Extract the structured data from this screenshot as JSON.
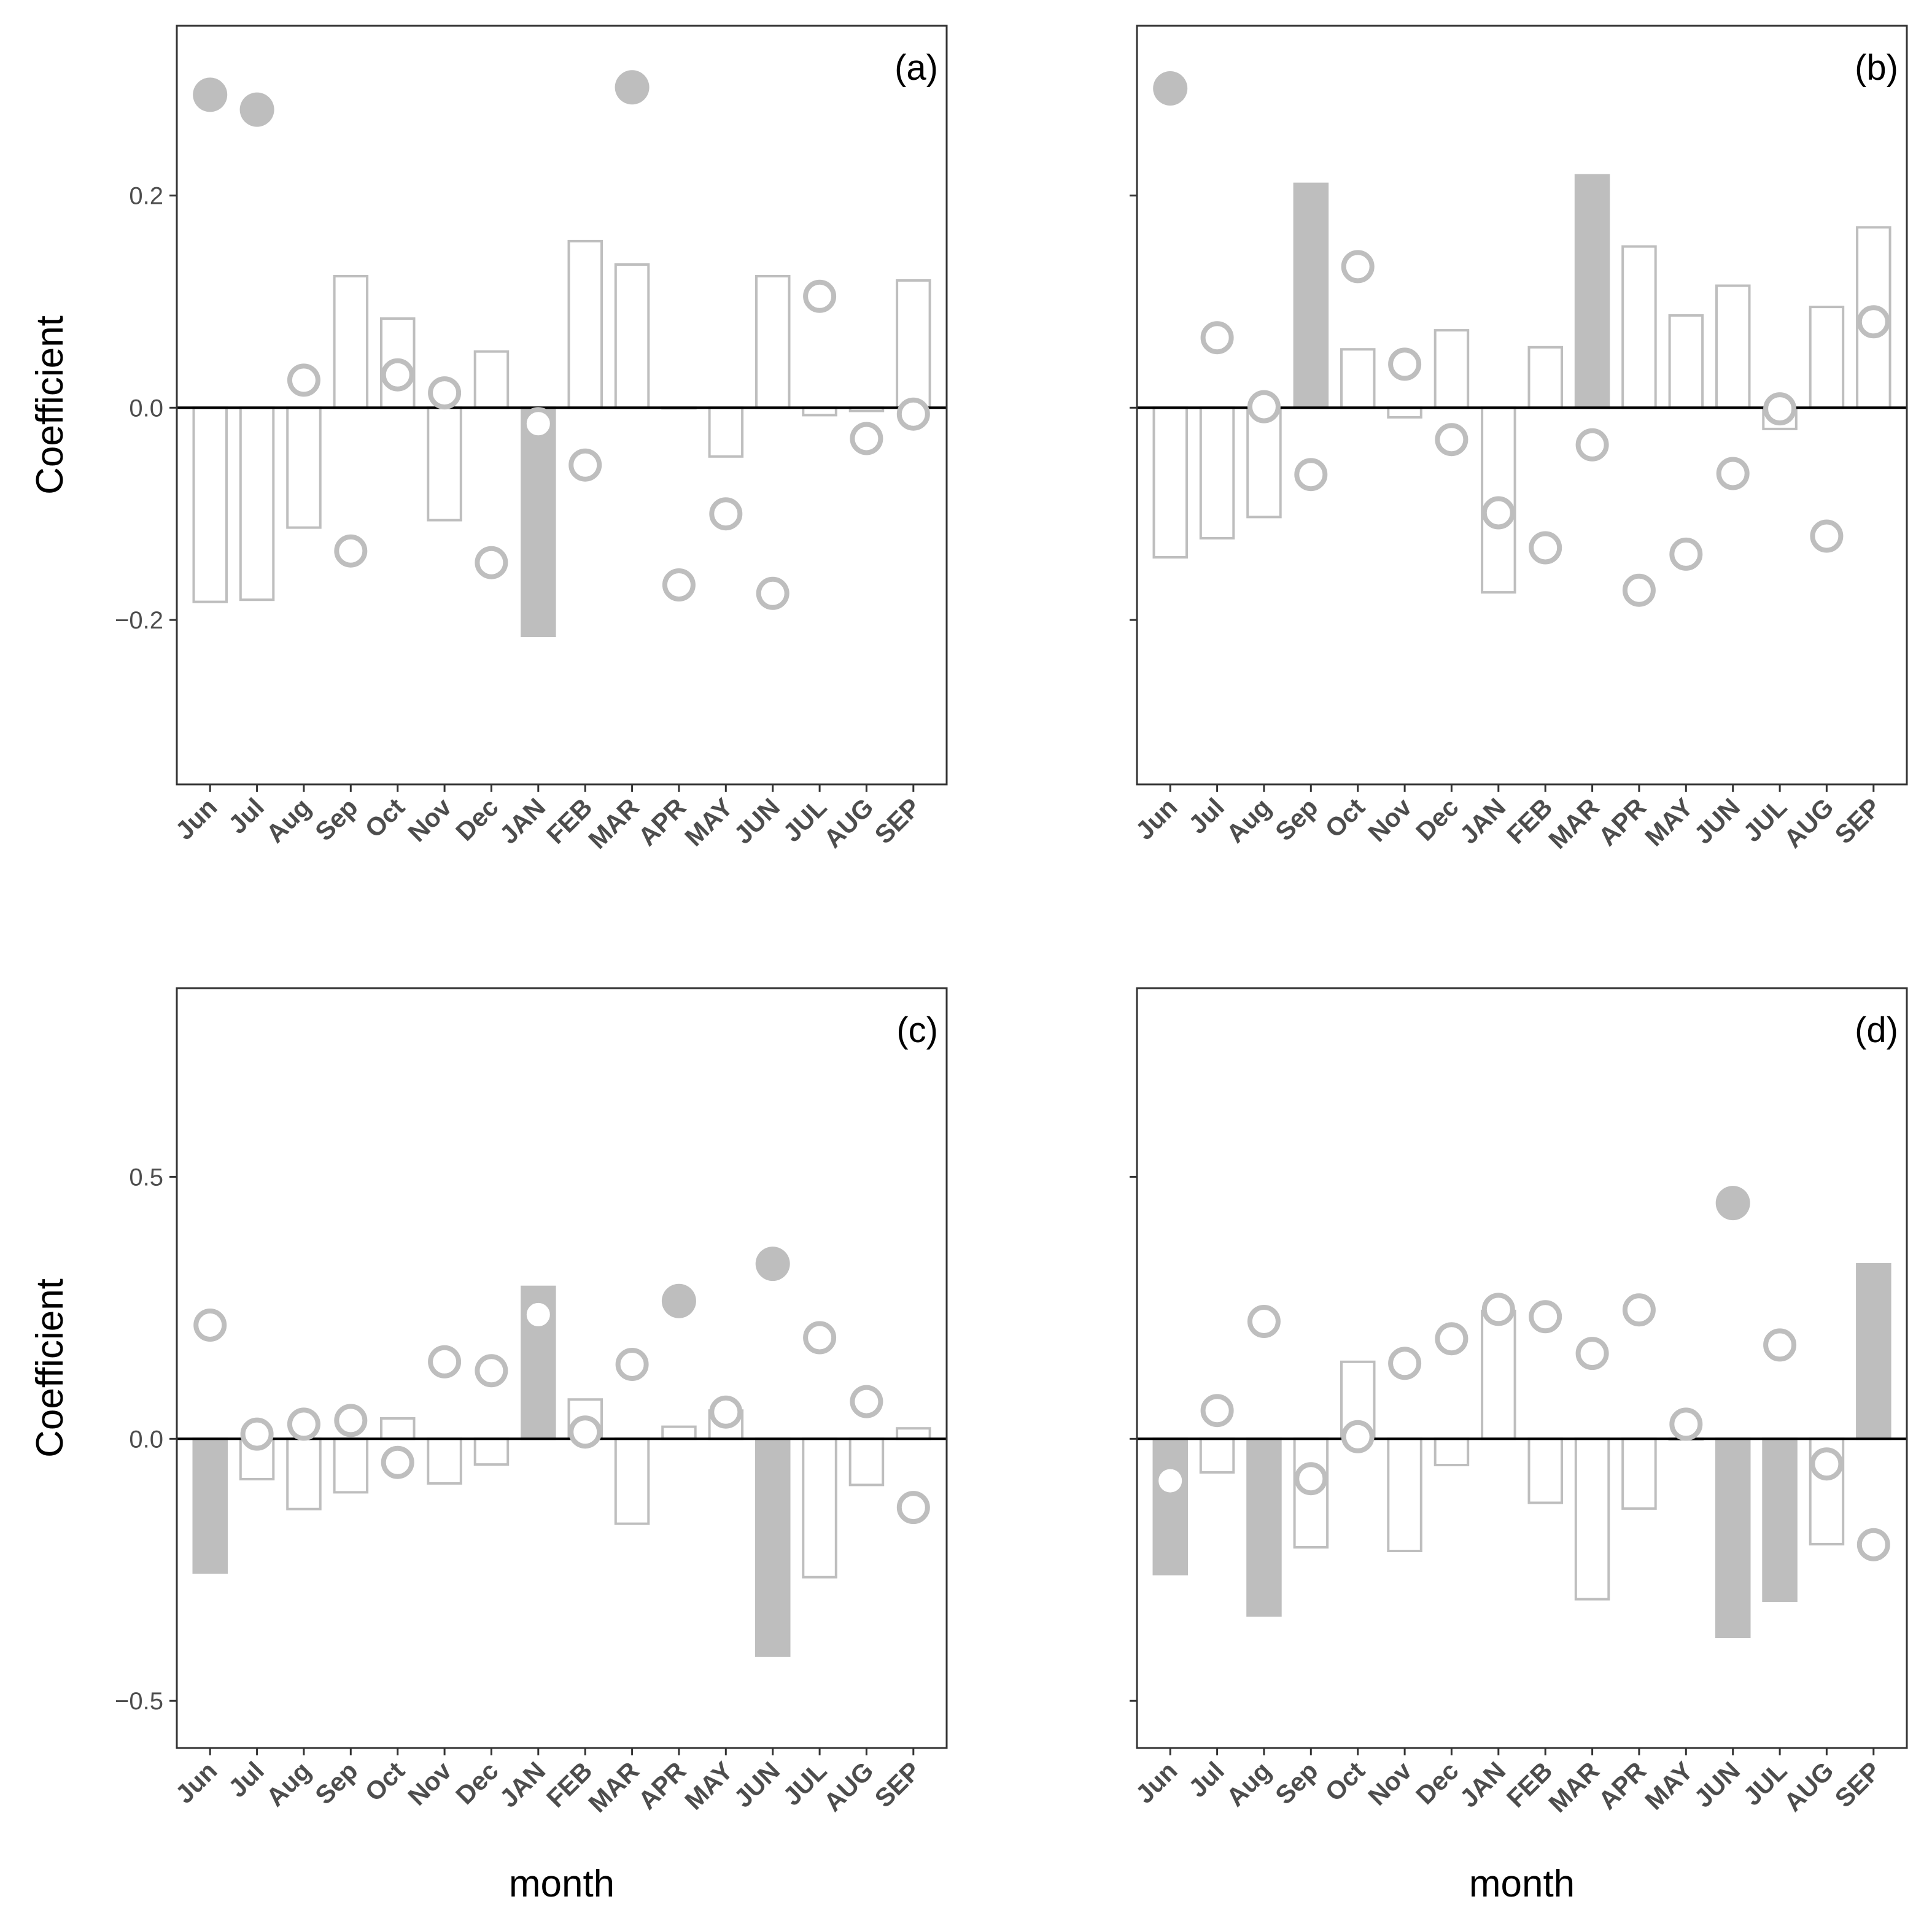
{
  "colors": {
    "mark": "#bebebe",
    "frame": "#333333",
    "zero_line": "#000000",
    "tick_text": "#4d4d4d"
  },
  "axes": {
    "ylabel": "Coefficient",
    "xlabel": "month"
  },
  "chart_data": [
    {
      "type": "bar",
      "panel": "(a)",
      "categories": [
        "Jun",
        "Jul",
        "Aug",
        "Sep",
        "Oct",
        "Nov",
        "Dec",
        "JAN",
        "FEB",
        "MAR",
        "APR",
        "MAY",
        "JUN",
        "JUL",
        "AUG",
        "SEP"
      ],
      "ylim": [
        -0.355,
        0.36
      ],
      "yticks": [
        -0.2,
        0.0,
        0.2
      ],
      "ytick_labels": [
        "−0.2",
        "0.0",
        "0.2"
      ],
      "bars": {
        "values": [
          -0.183,
          -0.181,
          -0.113,
          0.124,
          0.084,
          -0.106,
          0.053,
          -0.215,
          0.157,
          0.135,
          0.0,
          -0.046,
          0.124,
          -0.007,
          -0.003,
          0.12
        ],
        "significant": [
          false,
          false,
          false,
          false,
          false,
          false,
          false,
          true,
          false,
          false,
          false,
          false,
          false,
          false,
          false,
          false
        ]
      },
      "points": {
        "values": [
          0.295,
          0.281,
          0.026,
          -0.135,
          0.031,
          0.014,
          -0.146,
          -0.015,
          -0.054,
          0.302,
          -0.167,
          -0.1,
          -0.175,
          0.105,
          -0.029,
          -0.006
        ],
        "significant": [
          true,
          true,
          false,
          false,
          false,
          false,
          false,
          false,
          false,
          true,
          false,
          false,
          false,
          false,
          false,
          false
        ]
      }
    },
    {
      "type": "bar",
      "panel": "(b)",
      "categories": [
        "Jun",
        "Jul",
        "Aug",
        "Sep",
        "Oct",
        "Nov",
        "Dec",
        "JAN",
        "FEB",
        "MAR",
        "APR",
        "MAY",
        "JUN",
        "JUL",
        "AUG",
        "SEP"
      ],
      "ylim": [
        -0.355,
        0.36
      ],
      "yticks": [
        -0.2,
        0.0,
        0.2
      ],
      "ytick_labels": [
        "−0.2",
        "0.0",
        "0.2"
      ],
      "bars": {
        "values": [
          -0.141,
          -0.123,
          -0.103,
          0.211,
          0.055,
          -0.009,
          0.073,
          -0.174,
          0.057,
          0.219,
          0.152,
          0.087,
          0.115,
          -0.02,
          0.095,
          0.17
        ],
        "significant": [
          false,
          false,
          false,
          true,
          false,
          false,
          false,
          false,
          false,
          true,
          false,
          false,
          false,
          false,
          false,
          false
        ]
      },
      "points": {
        "values": [
          0.301,
          0.066,
          0.001,
          -0.063,
          0.133,
          0.041,
          -0.03,
          -0.099,
          -0.132,
          -0.035,
          -0.172,
          -0.138,
          -0.062,
          -0.001,
          -0.121,
          0.081
        ],
        "significant": [
          true,
          false,
          false,
          false,
          false,
          false,
          false,
          false,
          false,
          false,
          false,
          false,
          false,
          false,
          false,
          false
        ]
      }
    },
    {
      "type": "bar",
      "panel": "(c)",
      "categories": [
        "Jun",
        "Jul",
        "Aug",
        "Sep",
        "Oct",
        "Nov",
        "Dec",
        "JAN",
        "FEB",
        "MAR",
        "APR",
        "MAY",
        "JUN",
        "JUL",
        "AUG",
        "SEP"
      ],
      "ylim": [
        -0.59,
        0.86
      ],
      "yticks": [
        -0.5,
        0.0,
        0.5
      ],
      "ytick_labels": [
        "−0.5",
        "0.0",
        "0.5"
      ],
      "bars": {
        "values": [
          -0.255,
          -0.077,
          -0.134,
          -0.102,
          0.039,
          -0.085,
          -0.049,
          0.29,
          0.075,
          -0.162,
          0.023,
          0.054,
          -0.414,
          -0.264,
          -0.088,
          0.02
        ],
        "significant": [
          true,
          false,
          false,
          false,
          false,
          false,
          false,
          true,
          false,
          false,
          false,
          false,
          true,
          false,
          false,
          false
        ]
      },
      "points": {
        "values": [
          0.217,
          0.009,
          0.028,
          0.035,
          -0.045,
          0.147,
          0.13,
          0.237,
          0.013,
          0.142,
          0.263,
          0.051,
          0.334,
          0.193,
          0.071,
          -0.131
        ],
        "significant": [
          false,
          false,
          false,
          false,
          false,
          false,
          false,
          false,
          false,
          false,
          true,
          false,
          true,
          false,
          false,
          false
        ]
      }
    },
    {
      "type": "bar",
      "panel": "(d)",
      "categories": [
        "Jun",
        "Jul",
        "Aug",
        "Sep",
        "Oct",
        "Nov",
        "Dec",
        "JAN",
        "FEB",
        "MAR",
        "APR",
        "MAY",
        "JUN",
        "JUL",
        "AUG",
        "SEP"
      ],
      "ylim": [
        -0.59,
        0.86
      ],
      "yticks": [
        -0.5,
        0.0,
        0.5
      ],
      "ytick_labels": [
        "−0.5",
        "0.0",
        "0.5"
      ],
      "bars": {
        "values": [
          -0.258,
          -0.064,
          -0.337,
          -0.207,
          0.147,
          -0.214,
          -0.05,
          0.244,
          -0.122,
          -0.306,
          -0.133,
          0.0,
          -0.378,
          -0.309,
          -0.201,
          0.333
        ],
        "significant": [
          true,
          false,
          true,
          false,
          false,
          false,
          false,
          false,
          false,
          false,
          false,
          false,
          true,
          true,
          false,
          true
        ]
      },
      "points": {
        "values": [
          -0.08,
          0.054,
          0.224,
          -0.076,
          0.004,
          0.144,
          0.191,
          0.247,
          0.233,
          0.163,
          0.246,
          0.028,
          0.45,
          0.179,
          -0.048,
          -0.202
        ],
        "significant": [
          false,
          false,
          false,
          false,
          false,
          false,
          false,
          false,
          false,
          false,
          false,
          false,
          true,
          false,
          false,
          false
        ]
      }
    }
  ]
}
